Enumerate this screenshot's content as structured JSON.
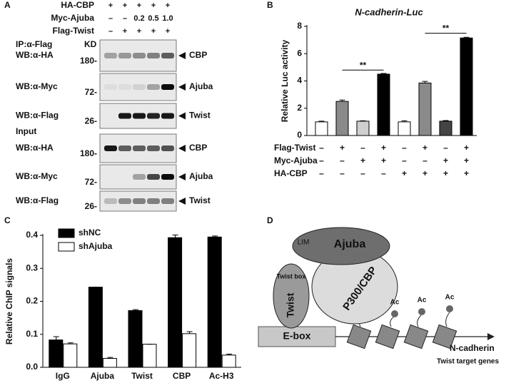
{
  "panel_labels": [
    "A",
    "B",
    "C",
    "D"
  ],
  "blot": {
    "header_rows": [
      {
        "label": "HA-CBP",
        "marks": [
          "+",
          "+",
          "+",
          "+",
          "+"
        ]
      },
      {
        "label": "Myc-Ajuba",
        "marks": [
          "–",
          "–",
          "0.2",
          "0.5",
          "1.0"
        ]
      },
      {
        "label": "Flag-Twist",
        "marks": [
          "–",
          "+",
          "+",
          "+",
          "+"
        ]
      }
    ],
    "sections": [
      "IP:α-Flag",
      "Input"
    ],
    "kd_header": "KD",
    "rows": [
      {
        "wb": "WB:α-HA",
        "kd": "180-",
        "protein": "CBP"
      },
      {
        "wb": "WB:α-Myc",
        "kd": "72-",
        "protein": "Ajuba"
      },
      {
        "wb": "WB:α-Flag",
        "kd": "26-",
        "protein": "Twist"
      },
      {
        "wb": "WB:α-HA",
        "kd": "180-",
        "protein": "CBP"
      },
      {
        "wb": "WB:α-Myc",
        "kd": "72-",
        "protein": "Ajuba"
      },
      {
        "wb": "WB:α-Flag",
        "kd": "26-",
        "protein": "Twist"
      }
    ]
  },
  "chart_data": [
    {
      "type": "bar",
      "title": "N-cadherin-Luc",
      "y_label": "Relative Luc activity",
      "values": [
        1.0,
        2.5,
        1.05,
        4.5,
        1.0,
        3.85,
        1.05,
        7.15
      ],
      "errors": [
        0.05,
        0.1,
        0.03,
        0.05,
        0.08,
        0.12,
        0.05,
        0.05
      ],
      "colors": [
        "#ffffff",
        "#8a8a8a",
        "#cfcfcf",
        "#000000",
        "#ffffff",
        "#8a8a8a",
        "#444444",
        "#000000"
      ],
      "ylim": [
        0,
        8
      ],
      "yticks": [
        0,
        2,
        4,
        6,
        8
      ],
      "annotations": [
        "**",
        "**"
      ],
      "conditions": [
        {
          "name": "Flag-Twist",
          "marks": [
            "–",
            "+",
            "–",
            "+",
            "–",
            "+",
            "–",
            "+"
          ]
        },
        {
          "name": "Myc-Ajuba",
          "marks": [
            "–",
            "–",
            "+",
            "+",
            "–",
            "–",
            "+",
            "+"
          ]
        },
        {
          "name": "HA-CBP",
          "marks": [
            "–",
            "–",
            "–",
            "–",
            "+",
            "+",
            "+",
            "+"
          ]
        }
      ]
    },
    {
      "type": "grouped_bar",
      "y_label": "Relative ChIP signals",
      "categories": [
        "IgG",
        "Ajuba",
        "Twist",
        "CBP",
        "Ac-H3"
      ],
      "series": [
        {
          "name": "shNC",
          "color": "#000000",
          "values": [
            0.083,
            0.243,
            0.172,
            0.393,
            0.395
          ],
          "errors": [
            0.01,
            0,
            0.003,
            0.008,
            0.003
          ]
        },
        {
          "name": "shAjuba",
          "color": "#ffffff",
          "values": [
            0.071,
            0.027,
            0.07,
            0.102,
            0.037
          ],
          "errors": [
            0.003,
            0.003,
            0,
            0.006,
            0.003
          ]
        }
      ],
      "ylim": [
        0,
        0.4
      ],
      "yticks": [
        {
          "value": 0,
          "label": "0.0"
        },
        0.1,
        0.2,
        0.3,
        0.4
      ],
      "legend": "upper left"
    }
  ],
  "diagram": {
    "ajuba": "Ajuba",
    "lim": "LIM",
    "twist_box": "Twist box",
    "twist": "Twist",
    "p300": "P300/CBP",
    "ac": [
      "Ac",
      "Ac",
      "Ac"
    ],
    "ebox": "E-box",
    "gene": "N-cadherin",
    "target": "Twist target genes"
  }
}
